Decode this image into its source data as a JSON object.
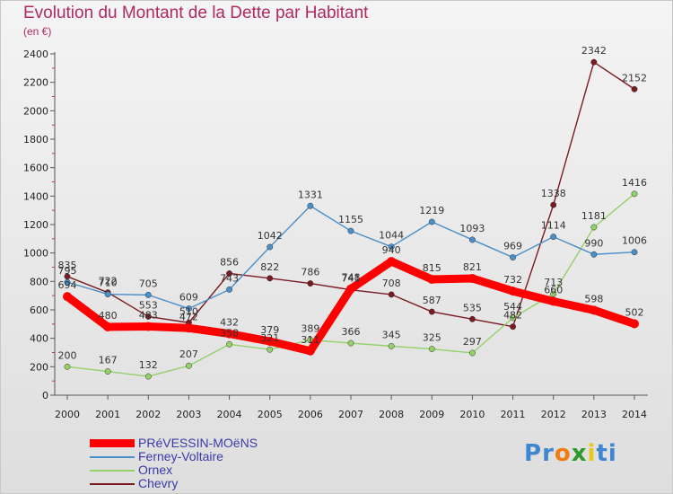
{
  "title": "Evolution du Montant de la Dette par Habitant",
  "subtitle": "(en €)",
  "brand": {
    "letters": [
      "P",
      "r",
      "o",
      "x",
      "i",
      "t",
      "i"
    ],
    "colors": [
      "#3e86d0",
      "#3e86d0",
      "#f07c12",
      "#2f9a2a",
      "#e8c81b",
      "#3e86d0",
      "#3e86d0"
    ]
  },
  "chart_data": {
    "type": "line",
    "x": [
      2000,
      2001,
      2002,
      2003,
      2004,
      2005,
      2006,
      2007,
      2008,
      2009,
      2010,
      2011,
      2012,
      2013,
      2014
    ],
    "ylim": [
      0,
      2400
    ],
    "yticks": [
      0,
      200,
      400,
      600,
      800,
      1000,
      1200,
      1400,
      1600,
      1800,
      2000,
      2200,
      2400
    ],
    "grid": false,
    "legend": "bottom-left",
    "series": [
      {
        "name": "Chevry",
        "color": "#7a1b22",
        "values": [
          835,
          722,
          553,
          510,
          856,
          822,
          786,
          741,
          708,
          587,
          535,
          482,
          1338,
          2342,
          2152
        ]
      },
      {
        "name": "Ornex",
        "color": "#94d168",
        "values": [
          200,
          167,
          132,
          207,
          358,
          321,
          389,
          366,
          345,
          325,
          297,
          544,
          713,
          1181,
          1416
        ]
      },
      {
        "name": "Ferney-Voltaire",
        "color": "#4a8fc8",
        "values": [
          795,
          710,
          705,
          609,
          743,
          1042,
          1331,
          1155,
          1044,
          1219,
          1093,
          969,
          1114,
          990,
          1006
        ]
      },
      {
        "name": "PRéVESSIN-MOëNS",
        "color": "#ff0000",
        "values": [
          694,
          480,
          483,
          472,
          432,
          379,
          311,
          748,
          940,
          815,
          821,
          732,
          660,
          598,
          502
        ]
      }
    ],
    "legend_order": [
      3,
      2,
      1,
      0
    ]
  }
}
